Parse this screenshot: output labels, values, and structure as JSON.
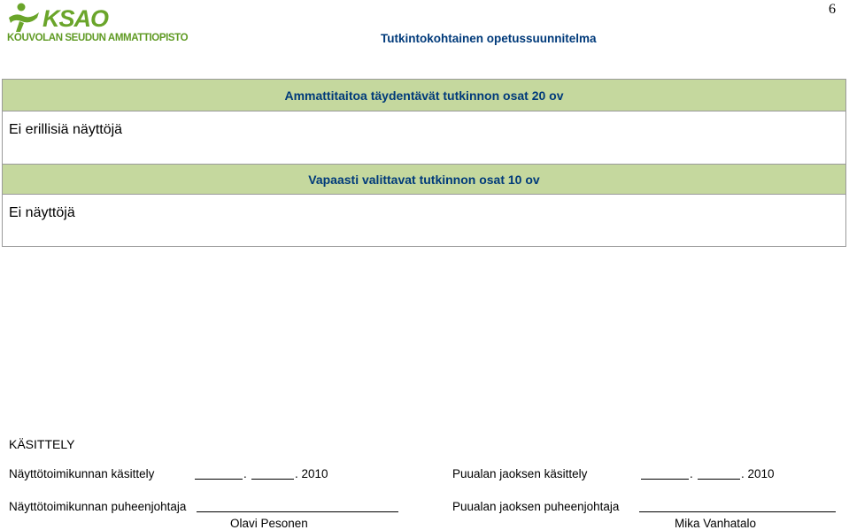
{
  "header": {
    "logo_main": "KSAO",
    "logo_sub": "KOUVOLAN SEUDUN AMMATTIOPISTO",
    "page_number": "6",
    "doc_title": "Tutkintokohtainen opetussuunnitelma"
  },
  "table": {
    "section1_title": "Ammattitaitoa täydentävät tutkinnon osat  20 ov",
    "section1_text": "Ei erillisiä näyttöjä",
    "section2_title": "Vapaasti valittavat tutkinnon osat 10 ov",
    "section2_text": "Ei näyttöjä"
  },
  "footer": {
    "heading": "KÄSITTELY",
    "left_processing_label": "Näyttötoimikunnan käsittely",
    "left_date_dot1": ".",
    "left_date_year": ". 2010",
    "right_processing_label": "Puualan jaoksen käsittely",
    "right_date_dot1": ".",
    "right_date_year": ". 2010",
    "left_chair_label": "Näyttötoimikunnan puheenjohtaja",
    "left_chair_name": "Olavi Pesonen",
    "right_chair_label": "Puualan jaoksen puheenjohtaja",
    "right_chair_name": "Mika Vanhatalo"
  },
  "colors": {
    "band_green": "#c5d89e",
    "title_blue": "#003a7a",
    "logo_green": "#6aa52a"
  }
}
